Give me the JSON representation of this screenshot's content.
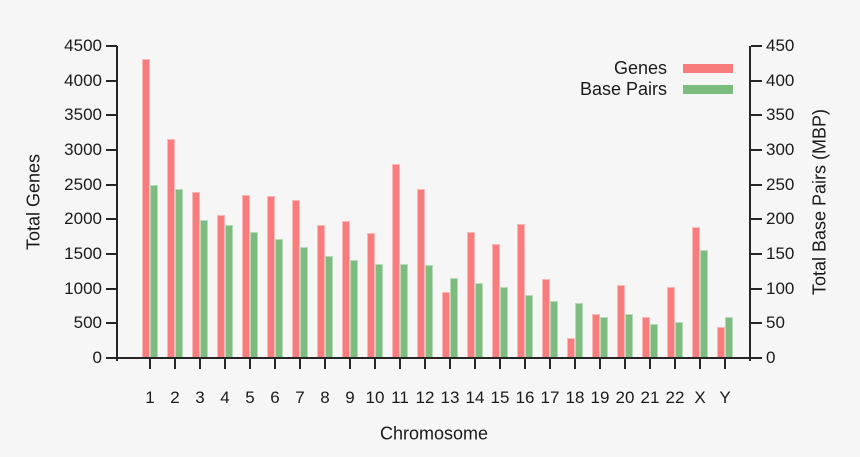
{
  "colors": {
    "background": "#f6f6f6",
    "axis": "#262626",
    "text": "#1a1a1a",
    "genes_bar": "#f97c7c",
    "base_pairs_bar": "#7cbc7e"
  },
  "legend": {
    "items": [
      {
        "label": "Genes",
        "color": "#f97c7c"
      },
      {
        "label": "Base Pairs",
        "color": "#7cbc7e"
      }
    ]
  },
  "chart_data": {
    "type": "bar",
    "title": "",
    "xlabel": "Chromosome",
    "ylabel_left": "Total Genes",
    "ylabel_right": "Total Base Pairs (MBP)",
    "categories": [
      "1",
      "2",
      "3",
      "4",
      "5",
      "6",
      "7",
      "8",
      "9",
      "10",
      "11",
      "12",
      "13",
      "14",
      "15",
      "16",
      "17",
      "18",
      "19",
      "20",
      "21",
      "22",
      "X",
      "Y"
    ],
    "series": [
      {
        "name": "Genes",
        "axis": "left",
        "color": "#f97c7c",
        "values": [
          4300,
          3150,
          2380,
          2050,
          2340,
          2330,
          2270,
          1910,
          1970,
          1800,
          2790,
          2430,
          950,
          1810,
          1640,
          1930,
          1130,
          280,
          630,
          1040,
          590,
          1020,
          1880,
          440
        ]
      },
      {
        "name": "Base Pairs",
        "axis": "right",
        "color": "#7cbc7e",
        "values": [
          249,
          243,
          198,
          191,
          181,
          171,
          159,
          146,
          141,
          135,
          135,
          134,
          115,
          107,
          102,
          90,
          81,
          78,
          59,
          63,
          48,
          51,
          155,
          59
        ]
      }
    ],
    "left_axis": {
      "min": 0,
      "max": 4500,
      "ticks": [
        0,
        500,
        1000,
        1500,
        2000,
        2500,
        3000,
        3500,
        4000,
        4500
      ]
    },
    "right_axis": {
      "min": 0,
      "max": 450,
      "ticks": [
        0,
        50,
        100,
        150,
        200,
        250,
        300,
        350,
        400,
        450
      ]
    },
    "grid": false,
    "legend_position": "top-right"
  }
}
